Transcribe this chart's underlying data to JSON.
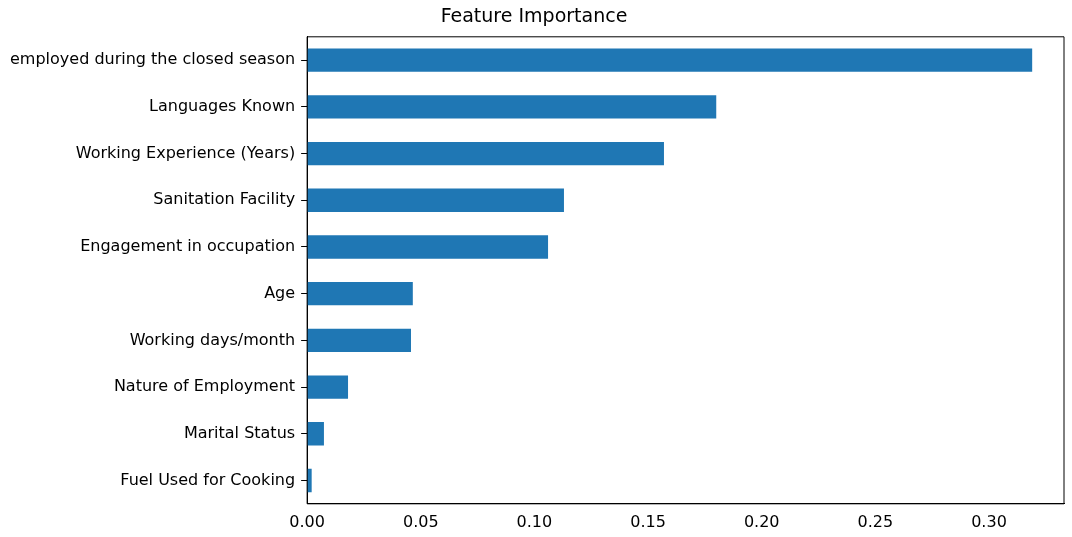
{
  "chart_data": {
    "type": "bar",
    "orientation": "horizontal",
    "title": "Feature Importance",
    "categories": [
      "employed during the closed season",
      "Languages Known",
      "Working Experience (Years)",
      "Sanitation Facility",
      "Engagement in occupation",
      "Age",
      "Working days/month",
      "Nature of Employment",
      "Marital Status",
      "Fuel Used for Cooking"
    ],
    "values": [
      0.319,
      0.18,
      0.157,
      0.113,
      0.106,
      0.0465,
      0.0457,
      0.018,
      0.0074,
      0.002
    ],
    "color": "#1f77b4",
    "xlim": [
      0,
      0.333
    ],
    "xticks": [
      {
        "value": 0,
        "label": "0.00"
      },
      {
        "value": 0.05,
        "label": "0.05"
      },
      {
        "value": 0.1,
        "label": "0.10"
      },
      {
        "value": 0.15,
        "label": "0.15"
      },
      {
        "value": 0.2,
        "label": "0.20"
      },
      {
        "value": 0.25,
        "label": "0.25"
      },
      {
        "value": 0.3,
        "label": "0.30"
      }
    ],
    "grid": false,
    "legend": false
  }
}
